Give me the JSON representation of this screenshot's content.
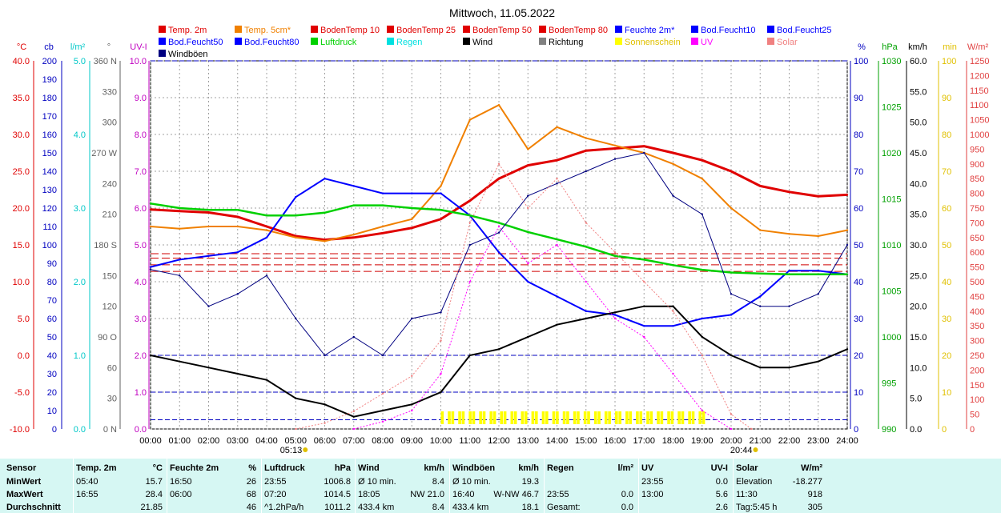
{
  "chart_data": {
    "type": "line",
    "title": "Mittwoch, 11.05.2022",
    "x_ticks": [
      "00:00",
      "01:00",
      "02:00",
      "03:00",
      "04:00",
      "05:00",
      "06:00",
      "07:00",
      "08:00",
      "09:00",
      "10:00",
      "11:00",
      "12:00",
      "13:00",
      "14:00",
      "15:00",
      "16:00",
      "17:00",
      "18:00",
      "19:00",
      "20:00",
      "21:00",
      "22:00",
      "23:00",
      "24:00"
    ],
    "sunrise": "05:13",
    "sunset": "20:44",
    "legend": [
      {
        "name": "Temp. 2m",
        "color": "#e00000"
      },
      {
        "name": "Temp. 5cm*",
        "color": "#f08000"
      },
      {
        "name": "BodenTemp 10",
        "color": "#e00000"
      },
      {
        "name": "BodenTemp 25",
        "color": "#e00000"
      },
      {
        "name": "BodenTemp 50",
        "color": "#e00000"
      },
      {
        "name": "BodenTemp 80",
        "color": "#e00000"
      },
      {
        "name": "Feuchte 2m*",
        "color": "#0000ff"
      },
      {
        "name": "Bod.Feucht10",
        "color": "#0000ff"
      },
      {
        "name": "Bod.Feucht25",
        "color": "#0000ff"
      },
      {
        "name": "Bod.Feucht50",
        "color": "#0000ff"
      },
      {
        "name": "Bod.Feucht80",
        "color": "#0000ff"
      },
      {
        "name": "Luftdruck",
        "color": "#00d000"
      },
      {
        "name": "Regen",
        "color": "#00e0e0"
      },
      {
        "name": "Wind",
        "color": "#000000"
      },
      {
        "name": "Richtung",
        "color": "#808080"
      },
      {
        "name": "Sonnenschein",
        "color": "#ffff00"
      },
      {
        "name": "UV",
        "color": "#ff00ff"
      },
      {
        "name": "Solar",
        "color": "#f08080"
      },
      {
        "name": "Windböen",
        "color": "#000080"
      }
    ],
    "axes": [
      {
        "unit": "°C",
        "color": "#e00000",
        "ticks": [
          "40.0",
          "35.0",
          "30.0",
          "25.0",
          "20.0",
          "15.0",
          "10.0",
          "5.0",
          "0.0",
          "-5.0",
          "-10.0"
        ],
        "range": [
          -10,
          40
        ]
      },
      {
        "unit": "cb",
        "color": "#0000c0",
        "ticks": [
          "200",
          "190",
          "180",
          "170",
          "160",
          "150",
          "140",
          "130",
          "120",
          "110",
          "100",
          "90",
          "80",
          "70",
          "60",
          "50",
          "40",
          "30",
          "20",
          "10",
          "0"
        ],
        "range": [
          0,
          200
        ]
      },
      {
        "unit": "l/m²",
        "color": "#00c8c8",
        "ticks": [
          "5.0",
          "4.0",
          "3.0",
          "2.0",
          "1.0",
          "0.0"
        ],
        "range": [
          0,
          5
        ]
      },
      {
        "unit": "°",
        "color": "#606060",
        "ticks": [
          "360 N",
          "330",
          "300",
          "270 W",
          "240",
          "210",
          "180 S",
          "150",
          "120",
          "90 O",
          "60",
          "30",
          "0 N"
        ],
        "range": [
          0,
          360
        ]
      },
      {
        "unit": "UV-I",
        "color": "#c000c0",
        "ticks": [
          "10.0",
          "9.0",
          "8.0",
          "7.0",
          "6.0",
          "5.0",
          "4.0",
          "3.0",
          "2.0",
          "1.0",
          "0.0"
        ],
        "range": [
          0,
          10
        ]
      },
      {
        "unit": "%",
        "color": "#0000c0",
        "ticks": [
          "100",
          "90",
          "80",
          "70",
          "60",
          "50",
          "40",
          "30",
          "20",
          "10",
          "0"
        ],
        "range": [
          0,
          100
        ]
      },
      {
        "unit": "hPa",
        "color": "#00a000",
        "ticks": [
          "1030",
          "1025",
          "1020",
          "1015",
          "1010",
          "1005",
          "1000",
          "995",
          "990"
        ],
        "range": [
          990,
          1030
        ]
      },
      {
        "unit": "km/h",
        "color": "#000000",
        "ticks": [
          "60.0",
          "55.0",
          "50.0",
          "45.0",
          "40.0",
          "35.0",
          "30.0",
          "25.0",
          "20.0",
          "15.0",
          "10.0",
          "5.0",
          "0.0"
        ],
        "range": [
          0,
          60
        ]
      },
      {
        "unit": "min",
        "color": "#e0c000",
        "ticks": [
          "100",
          "90",
          "80",
          "70",
          "60",
          "50",
          "40",
          "30",
          "20",
          "10",
          "0"
        ],
        "range": [
          0,
          100
        ]
      },
      {
        "unit": "W/m²",
        "color": "#e04040",
        "ticks": [
          "1250",
          "1200",
          "1150",
          "1100",
          "1050",
          "1000",
          "950",
          "900",
          "850",
          "800",
          "750",
          "700",
          "650",
          "600",
          "550",
          "500",
          "450",
          "400",
          "350",
          "300",
          "250",
          "200",
          "150",
          "100",
          "50",
          "0"
        ],
        "range": [
          0,
          1250
        ]
      }
    ],
    "series": [
      {
        "name": "Temp. 2m",
        "unit": "°C",
        "x": [
          0,
          1,
          2,
          3,
          4,
          5,
          6,
          7,
          8,
          9,
          10,
          11,
          12,
          13,
          14,
          15,
          16,
          17,
          18,
          19,
          20,
          21,
          22,
          23,
          24
        ],
        "values": [
          19.8,
          19.6,
          19.4,
          18.8,
          17.5,
          16.2,
          15.7,
          16.0,
          16.6,
          17.3,
          18.5,
          21.0,
          24.0,
          25.8,
          26.5,
          27.8,
          28.1,
          28.4,
          27.5,
          26.5,
          25.0,
          23.0,
          22.2,
          21.6,
          21.8
        ]
      },
      {
        "name": "Temp. 5cm*",
        "unit": "°C",
        "x": [
          0,
          1,
          2,
          3,
          4,
          5,
          6,
          7,
          8,
          9,
          10,
          11,
          12,
          13,
          14,
          15,
          16,
          17,
          18,
          19,
          20,
          21,
          22,
          23,
          24
        ],
        "values": [
          17.5,
          17.2,
          17.5,
          17.5,
          17.0,
          16.0,
          15.5,
          16.4,
          17.5,
          18.5,
          23.0,
          32.0,
          34.0,
          28.0,
          31.0,
          29.5,
          28.5,
          27.5,
          26.0,
          24.0,
          20.0,
          17.0,
          16.5,
          16.2,
          17.0
        ]
      },
      {
        "name": "Feuchte 2m*",
        "unit": "%",
        "x": [
          0,
          1,
          2,
          3,
          4,
          5,
          6,
          7,
          8,
          9,
          10,
          11,
          12,
          13,
          14,
          15,
          16,
          17,
          18,
          19,
          20,
          21,
          22,
          23,
          24
        ],
        "values": [
          44,
          46,
          47,
          48,
          52,
          63,
          68,
          66,
          64,
          64,
          64,
          58,
          48,
          40,
          36,
          32,
          31,
          28,
          28,
          30,
          31,
          36,
          43,
          43,
          42
        ]
      },
      {
        "name": "Luftdruck",
        "unit": "hPa",
        "x": [
          0,
          1,
          2,
          3,
          4,
          5,
          6,
          7,
          8,
          9,
          10,
          11,
          12,
          13,
          14,
          15,
          16,
          17,
          18,
          19,
          20,
          21,
          22,
          23,
          24
        ],
        "values": [
          1014.5,
          1014.0,
          1013.8,
          1013.8,
          1013.2,
          1013.2,
          1013.5,
          1014.3,
          1014.3,
          1014.0,
          1013.8,
          1013.2,
          1012.4,
          1011.4,
          1010.6,
          1009.8,
          1008.8,
          1008.4,
          1007.8,
          1007.3,
          1007.0,
          1006.9,
          1006.8,
          1006.8,
          1006.8
        ]
      },
      {
        "name": "Wind",
        "unit": "km/h",
        "x": [
          0,
          1,
          2,
          3,
          4,
          5,
          6,
          7,
          8,
          9,
          10,
          11,
          12,
          13,
          14,
          15,
          16,
          17,
          18,
          19,
          20,
          21,
          22,
          23,
          24
        ],
        "values": [
          12,
          11,
          10,
          9,
          8,
          5,
          4,
          2,
          3,
          4,
          6,
          12,
          13,
          15,
          17,
          18,
          19,
          20,
          20,
          15,
          12,
          10,
          10,
          11,
          13
        ]
      },
      {
        "name": "Windböen",
        "unit": "km/h",
        "x": [
          0,
          1,
          2,
          3,
          4,
          5,
          6,
          7,
          8,
          9,
          10,
          11,
          12,
          13,
          14,
          15,
          16,
          17,
          18,
          19,
          20,
          21,
          22,
          23,
          24
        ],
        "values": [
          26,
          25,
          20,
          22,
          25,
          18,
          12,
          15,
          12,
          18,
          19,
          30,
          32,
          38,
          40,
          42,
          44,
          45,
          38,
          35,
          22,
          20,
          20,
          22,
          30
        ]
      },
      {
        "name": "Solar",
        "unit": "W/m²",
        "x": [
          5,
          6,
          7,
          8,
          9,
          10,
          11,
          12,
          13,
          14,
          15,
          16,
          17,
          18,
          19,
          20,
          20.7
        ],
        "values": [
          0,
          20,
          60,
          120,
          180,
          300,
          700,
          900,
          750,
          850,
          700,
          600,
          500,
          400,
          250,
          50,
          0
        ]
      },
      {
        "name": "UV",
        "unit": "UV-I",
        "x": [
          7,
          8,
          9,
          10,
          11,
          12,
          13,
          14,
          15,
          16,
          17,
          18,
          19,
          20
        ],
        "values": [
          0,
          0.2,
          0.5,
          1.5,
          4.0,
          5.5,
          4.5,
          5.0,
          4.0,
          3.0,
          2.5,
          1.5,
          0.5,
          0
        ]
      }
    ],
    "soil_temperatures": [
      {
        "name": "BodenTemp 10",
        "value": 13.8
      },
      {
        "name": "BodenTemp 25",
        "value": 13.2
      },
      {
        "name": "BodenTemp 50",
        "value": 12.3
      },
      {
        "name": "BodenTemp 80",
        "value": 11.4
      }
    ],
    "soil_moisture": [
      {
        "name": "Bod.Feucht10",
        "value": 0
      },
      {
        "name": "Bod.Feucht25",
        "value": 0
      },
      {
        "name": "Bod.Feucht50",
        "value": 4
      },
      {
        "name": "Bod.Feucht80",
        "value": 0
      }
    ]
  },
  "stats": {
    "headers": [
      {
        "label": "Sensor",
        "unit": ""
      },
      {
        "label": "Temp. 2m",
        "unit": "°C"
      },
      {
        "label": "Feuchte 2m",
        "unit": "%"
      },
      {
        "label": "Luftdruck",
        "unit": "hPa"
      },
      {
        "label": "Wind",
        "unit": "km/h"
      },
      {
        "label": "Windböen",
        "unit": "km/h"
      },
      {
        "label": "Regen",
        "unit": "l/m²"
      },
      {
        "label": "UV",
        "unit": "UV-I"
      },
      {
        "label": "Solar",
        "unit": "W/m²"
      }
    ],
    "rows": [
      {
        "label": "MinWert",
        "cells": [
          [
            "05:40",
            "15.7"
          ],
          [
            "16:50",
            "26"
          ],
          [
            "23:55",
            "1006.8"
          ],
          [
            "Ø 10 min.",
            "8.4"
          ],
          [
            "Ø 10 min.",
            "19.3"
          ],
          [
            "",
            ""
          ],
          [
            "23:55",
            "0.0"
          ],
          [
            "Elevation",
            "-18.277"
          ]
        ]
      },
      {
        "label": "MaxWert",
        "cells": [
          [
            "16:55",
            "28.4"
          ],
          [
            "06:00",
            "68"
          ],
          [
            "07:20",
            "1014.5"
          ],
          [
            "18:05",
            "NW 21.0"
          ],
          [
            "16:40",
            "W-NW 46.7"
          ],
          [
            "23:55",
            "0.0"
          ],
          [
            "13:00",
            "5.6"
          ],
          [
            "11:30",
            "918"
          ]
        ]
      },
      {
        "label": "Durchschnitt",
        "cells": [
          [
            "",
            "21.85"
          ],
          [
            "",
            "46"
          ],
          [
            "^1.2hPa/h",
            "1011.2"
          ],
          [
            "433.4 km",
            "8.4"
          ],
          [
            "433.4 km",
            "18.1"
          ],
          [
            "Gesamt:",
            "0.0"
          ],
          [
            "",
            "2.6"
          ],
          [
            "Tag:5:45 h",
            "305"
          ]
        ]
      }
    ]
  }
}
